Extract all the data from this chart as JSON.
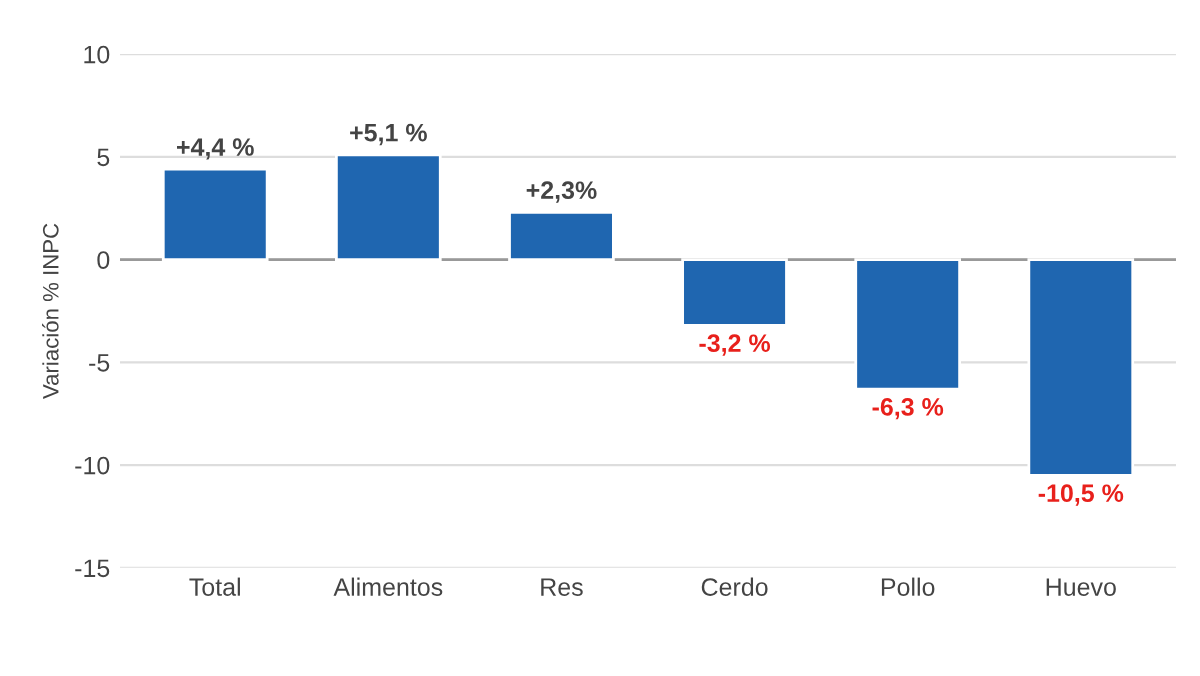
{
  "chart_data": {
    "type": "bar",
    "ylabel": "Variación % INPC",
    "categories": [
      "Total",
      "Alimentos",
      "Res",
      "Cerdo",
      "Pollo",
      "Huevo"
    ],
    "values": [
      4.4,
      5.1,
      2.3,
      -3.2,
      -6.3,
      -10.5
    ],
    "value_labels": [
      "+4,4 %",
      "+5,1 %",
      "+2,3%",
      "-3,2 %",
      "-6,3 %",
      "-10,5 %"
    ],
    "color": "#1f66b0",
    "ylim": [
      -15,
      10
    ],
    "yticks": [
      -15,
      -10,
      -5,
      0,
      5,
      10
    ],
    "grid": "y",
    "legend": false
  }
}
